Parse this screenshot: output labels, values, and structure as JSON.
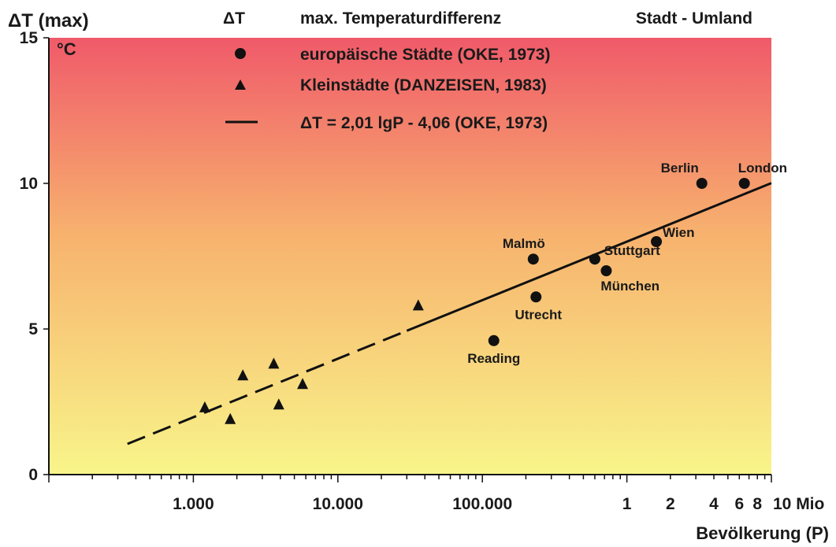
{
  "chart_data": {
    "type": "scatter",
    "title_symbol": "ΔT",
    "title_desc": "max. Temperaturdifferenz",
    "title_right": "Stadt - Umland",
    "ylabel": "ΔT (max)",
    "yunit": "°C",
    "xlabel": "Bevölkerung (P)",
    "x_scale": "log",
    "xlim": [
      100,
      10000000
    ],
    "ylim": [
      0,
      15
    ],
    "y_ticks": [
      0,
      5,
      10,
      15
    ],
    "x_tick_labels": [
      {
        "value": 1000,
        "label": "1.000"
      },
      {
        "value": 10000,
        "label": "10.000"
      },
      {
        "value": 100000,
        "label": "100.000"
      },
      {
        "value": 1000000,
        "label": "1"
      },
      {
        "value": 2000000,
        "label": "2"
      },
      {
        "value": 4000000,
        "label": "4"
      },
      {
        "value": 6000000,
        "label": "6"
      },
      {
        "value": 8000000,
        "label": "8"
      },
      {
        "value": 10000000,
        "label": "10 Mio"
      }
    ],
    "legend_placement": "top",
    "series": [
      {
        "name": "europäische Städte (OKE, 1973)",
        "marker": "circle",
        "points": [
          {
            "label": "Reading",
            "x": 120000,
            "y": 4.6
          },
          {
            "label": "Malmö",
            "x": 225000,
            "y": 7.4
          },
          {
            "label": "Utrecht",
            "x": 235000,
            "y": 6.1
          },
          {
            "label": "Stuttgart",
            "x": 600000,
            "y": 7.4
          },
          {
            "label": "München",
            "x": 720000,
            "y": 7.0
          },
          {
            "label": "Wien",
            "x": 1600000,
            "y": 8.0
          },
          {
            "label": "Berlin",
            "x": 3300000,
            "y": 10.0
          },
          {
            "label": "London",
            "x": 6500000,
            "y": 10.0
          }
        ]
      },
      {
        "name": "Kleinstädte (DANZEISEN, 1983)",
        "marker": "triangle",
        "points": [
          {
            "x": 1200,
            "y": 2.3
          },
          {
            "x": 1800,
            "y": 1.9
          },
          {
            "x": 2200,
            "y": 3.4
          },
          {
            "x": 3600,
            "y": 3.8
          },
          {
            "x": 3900,
            "y": 2.4
          },
          {
            "x": 5700,
            "y": 3.1
          },
          {
            "x": 36000,
            "y": 5.8
          }
        ]
      }
    ],
    "regression": {
      "name": "ΔT = 2,01 lgP - 4,06 (OKE, 1973)",
      "slope": 2.01,
      "intercept": -4.06,
      "x_range": [
        350,
        10000000
      ],
      "dashed_until": 30000
    },
    "colors": {
      "background_top": "#f05a6a",
      "background_mid": "#f7b26e",
      "background_bottom": "#f8f58a",
      "marker": "#111111",
      "text": "#1a1a1a"
    }
  }
}
